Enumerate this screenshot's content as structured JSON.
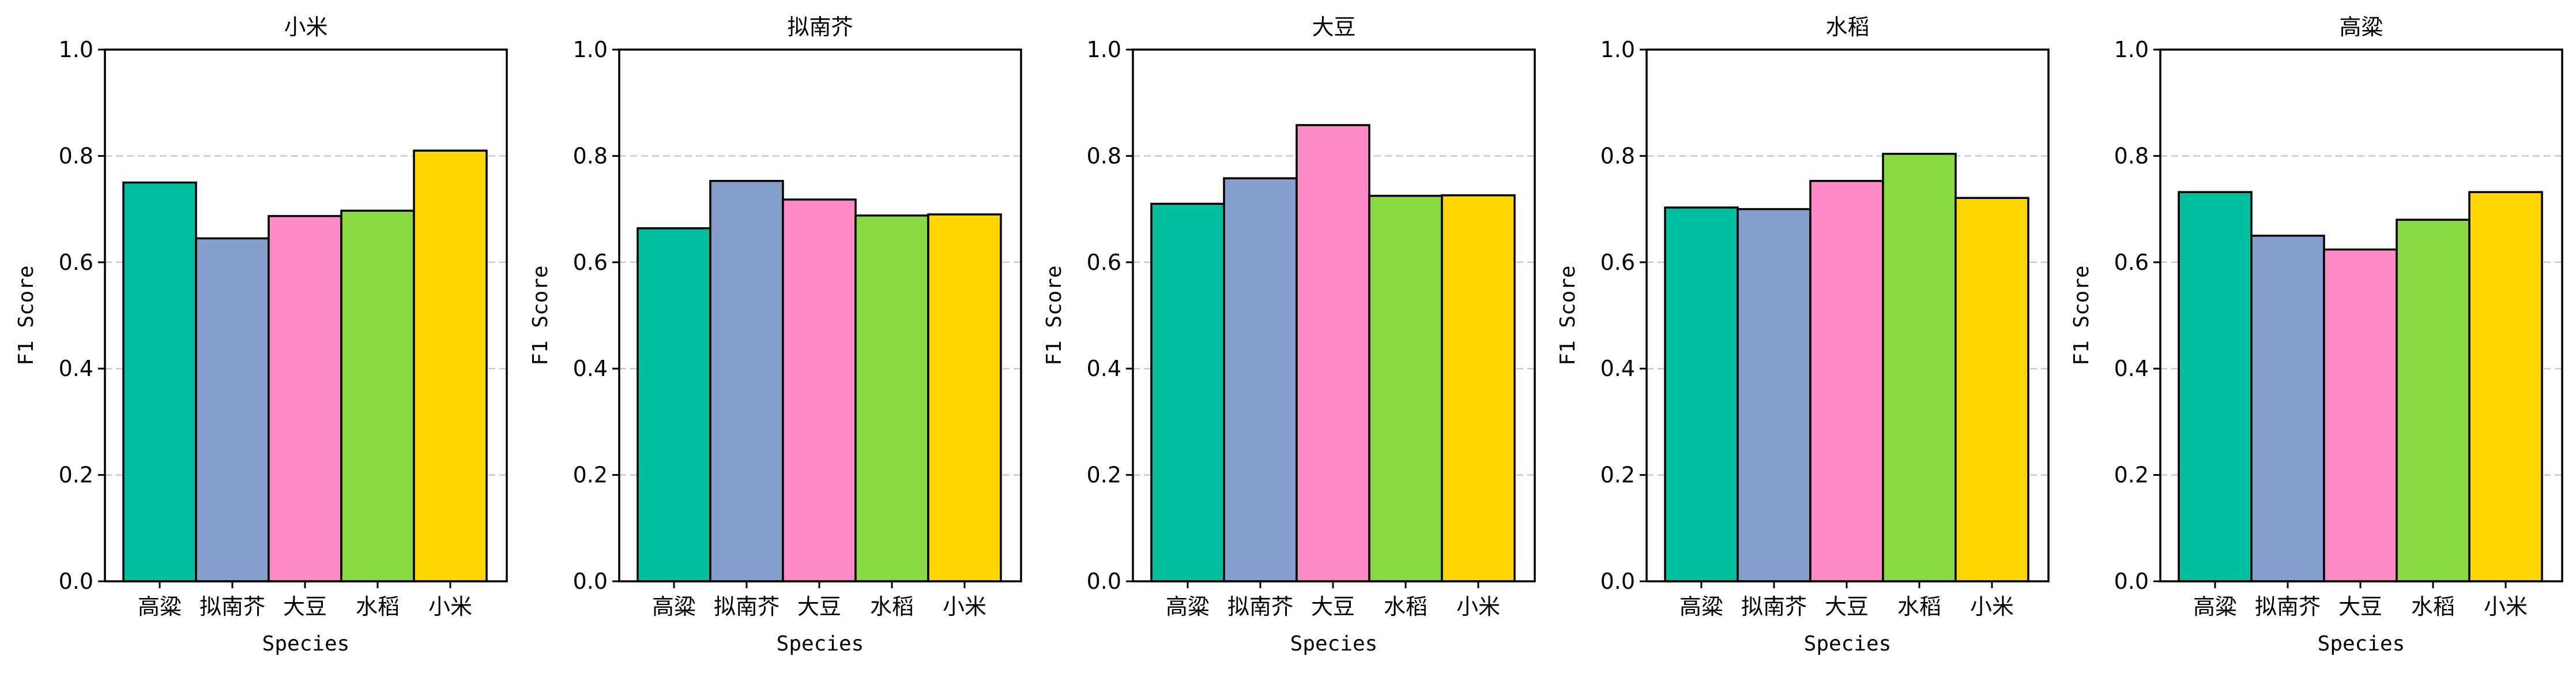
{
  "chart_data": [
    {
      "type": "bar",
      "title": "小米",
      "categories": [
        "高粱",
        "拟南芥",
        "大豆",
        "水稻",
        "小米"
      ],
      "values": [
        0.75,
        0.645,
        0.687,
        0.697,
        0.81
      ],
      "xlabel": "Species",
      "ylabel": "F1 Score",
      "ylim": [
        0,
        1.0
      ],
      "yticks": [
        "0.0",
        "0.2",
        "0.4",
        "0.6",
        "0.8",
        "1.0"
      ],
      "grid": "y-dashed",
      "colors": [
        "#00BF9F",
        "#849FCC",
        "#FF8AC6",
        "#89D943",
        "#FFD600"
      ]
    },
    {
      "type": "bar",
      "title": "拟南芥",
      "categories": [
        "高粱",
        "拟南芥",
        "大豆",
        "水稻",
        "小米"
      ],
      "values": [
        0.664,
        0.753,
        0.718,
        0.688,
        0.69
      ],
      "xlabel": "Species",
      "ylabel": "F1 Score",
      "ylim": [
        0,
        1.0
      ],
      "yticks": [
        "0.0",
        "0.2",
        "0.4",
        "0.6",
        "0.8",
        "1.0"
      ],
      "grid": "y-dashed",
      "colors": [
        "#00BF9F",
        "#849FCC",
        "#FF8AC6",
        "#89D943",
        "#FFD600"
      ]
    },
    {
      "type": "bar",
      "title": "大豆",
      "categories": [
        "高粱",
        "拟南芥",
        "大豆",
        "水稻",
        "小米"
      ],
      "values": [
        0.71,
        0.758,
        0.858,
        0.725,
        0.726
      ],
      "xlabel": "Species",
      "ylabel": "F1 Score",
      "ylim": [
        0,
        1.0
      ],
      "yticks": [
        "0.0",
        "0.2",
        "0.4",
        "0.6",
        "0.8",
        "1.0"
      ],
      "grid": "y-dashed",
      "colors": [
        "#00BF9F",
        "#849FCC",
        "#FF8AC6",
        "#89D943",
        "#FFD600"
      ]
    },
    {
      "type": "bar",
      "title": "水稻",
      "categories": [
        "高粱",
        "拟南芥",
        "大豆",
        "水稻",
        "小米"
      ],
      "values": [
        0.703,
        0.7,
        0.753,
        0.804,
        0.721
      ],
      "xlabel": "Species",
      "ylabel": "F1 Score",
      "ylim": [
        0,
        1.0
      ],
      "yticks": [
        "0.0",
        "0.2",
        "0.4",
        "0.6",
        "0.8",
        "1.0"
      ],
      "grid": "y-dashed",
      "colors": [
        "#00BF9F",
        "#849FCC",
        "#FF8AC6",
        "#89D943",
        "#FFD600"
      ]
    },
    {
      "type": "bar",
      "title": "高粱",
      "categories": [
        "高粱",
        "拟南芥",
        "大豆",
        "水稻",
        "小米"
      ],
      "values": [
        0.732,
        0.65,
        0.624,
        0.68,
        0.732
      ],
      "xlabel": "Species",
      "ylabel": "F1 Score",
      "ylim": [
        0,
        1.0
      ],
      "yticks": [
        "0.0",
        "0.2",
        "0.4",
        "0.6",
        "0.8",
        "1.0"
      ],
      "grid": "y-dashed",
      "colors": [
        "#00BF9F",
        "#849FCC",
        "#FF8AC6",
        "#89D943",
        "#FFD600"
      ]
    }
  ]
}
